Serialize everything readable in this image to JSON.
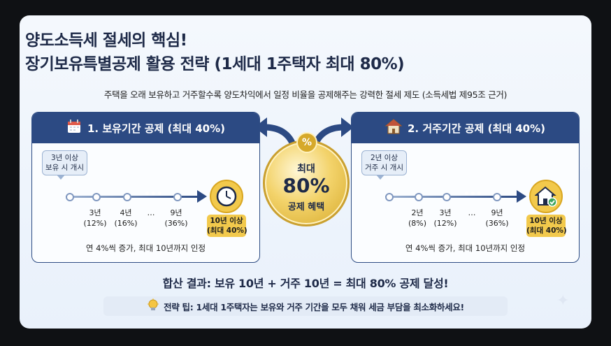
{
  "title_line1": "양도소득세 절세의 핵심!",
  "title_line2": "장기보유특별공제 활용 전략 (1세대 1주택자 최대 80%)",
  "subtitle": "주택을 오래 보유하고 거주할수록 양도차익에서 일정 비율을 공제해주는 강력한 절세 제도 (소득세법 제95조 근거)",
  "left_panel": {
    "icon": "calendar-icon",
    "header": "1. 보유기간 공제 (최대 40%)",
    "callout_line1": "3년 이상",
    "callout_line2": "보유 시 개시",
    "labels": [
      {
        "year": "3년",
        "rate": "(12%)"
      },
      {
        "year": "4년",
        "rate": "(16%)"
      },
      {
        "year": "…",
        "rate": ""
      },
      {
        "year": "9년",
        "rate": "(36%)"
      }
    ],
    "end_icon": "clock-icon",
    "end_line1": "10년 이상",
    "end_line2": "(최대 40%)",
    "footer": "연 4%씩 증가, 최대 10년까지 인정"
  },
  "right_panel": {
    "icon": "house-icon",
    "header": "2. 거주기간 공제 (최대 40%)",
    "callout_line1": "2년 이상",
    "callout_line2": "거주 시 개시",
    "labels": [
      {
        "year": "2년",
        "rate": "(8%)"
      },
      {
        "year": "3년",
        "rate": "(12%)"
      },
      {
        "year": "…",
        "rate": ""
      },
      {
        "year": "9년",
        "rate": "(36%)"
      }
    ],
    "end_icon": "house-check-icon",
    "end_line1": "10년 이상",
    "end_line2": "(최대 40%)",
    "footer": "연 4%씩 증가, 최대 10년까지 인정"
  },
  "medal": {
    "symbol": "%",
    "line1": "최대",
    "line2": "80%",
    "line3": "공제 혜택"
  },
  "result": "합산 결과: 보유 10년 + 거주 10년 = 최대 80% 공제 달성!",
  "tip": "전략 팁: 1세대 1주택자는 보유와 거주 기간을 모두 채워 세금 부담을 최소화하세요!",
  "colors": {
    "navy": "#2c4a83",
    "gold": "#f2c94c",
    "title": "#1e2a48"
  }
}
